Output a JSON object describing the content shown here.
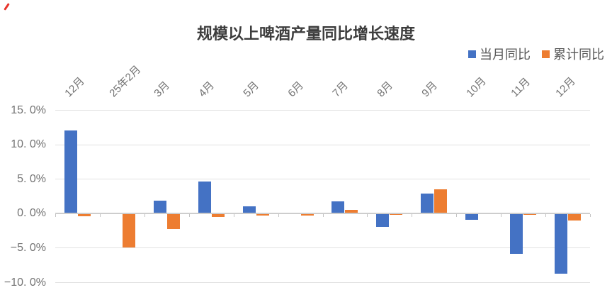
{
  "chart_data": {
    "type": "bar",
    "title": "规模以上啤酒产量同比增长速度",
    "categories": [
      "12月",
      "25年2月",
      "3月",
      "4月",
      "5月",
      "6月",
      "7月",
      "8月",
      "9月",
      "10月",
      "11月",
      "12月"
    ],
    "series": [
      {
        "name": "当月同比",
        "color": "#4472C4",
        "values": [
          12.1,
          null,
          1.9,
          4.7,
          1.1,
          -0.1,
          1.8,
          -1.9,
          2.9,
          -0.9,
          -5.8,
          -8.7
        ]
      },
      {
        "name": "累计同比",
        "color": "#ED7D31",
        "values": [
          -0.4,
          -4.9,
          -2.2,
          -0.5,
          -0.3,
          -0.3,
          0.5,
          -0.2,
          3.5,
          0,
          -0.2,
          -1.0
        ]
      }
    ],
    "y_axis": {
      "unit": "%",
      "min": -10,
      "max": 15,
      "tick_step": 5,
      "ticks": [
        {
          "value": 15,
          "label": "15. 0%"
        },
        {
          "value": 10,
          "label": "10. 0%"
        },
        {
          "value": 5,
          "label": "5. 0%"
        },
        {
          "value": 0,
          "label": "0. 0%"
        },
        {
          "value": -5,
          "label": "−5. 0%"
        },
        {
          "value": -10,
          "label": "−10. 0%"
        }
      ]
    },
    "x_axis": {
      "label_rotation_deg": 45
    },
    "legend_position": "top-right",
    "grid": true,
    "baseline": 0
  },
  "colors": {
    "series_blue": "#4472C4",
    "series_orange": "#ED7D31",
    "gridline": "#e2e2e2",
    "axis_line": "#cdcdcd",
    "title_text": "#3d3d3d",
    "axis_label_text": "#737373",
    "legend_text": "#595959",
    "red_mark": "#e8332a"
  }
}
